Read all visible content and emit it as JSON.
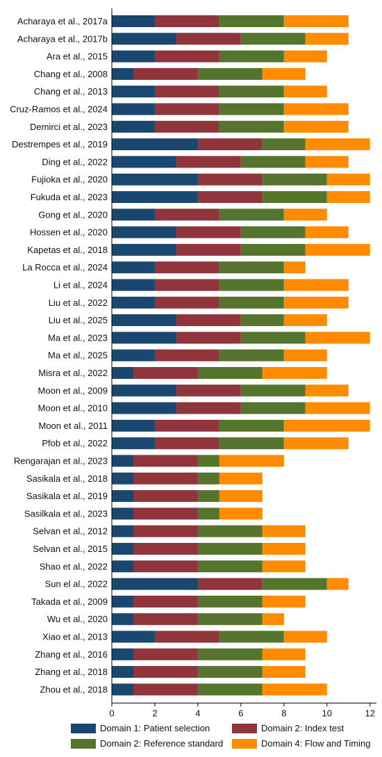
{
  "chart_data": {
    "type": "bar",
    "orientation": "horizontal",
    "stacked": true,
    "categories": [
      "Acharaya et al., 2017a",
      "Acharaya et al., 2017b",
      "Ara et al., 2015",
      "Chang et al., 2008",
      "Chang et al., 2013",
      "Cruz-Ramos et al., 2024",
      "Demirci et al., 2023",
      "Destrempes et al., 2019",
      "Ding et al., 2022",
      "Fujioka et al., 2020",
      "Fukuda et al., 2023",
      "Gong et al., 2020",
      "Hossen et al., 2020",
      "Kapetas et al., 2018",
      "La Rocca et al., 2024",
      "Li et al., 2024",
      "Liu et al., 2022",
      "Liu et al., 2025",
      "Ma et al., 2023",
      "Ma et al., 2025",
      "Misra et al., 2022",
      "Moon et al., 2009",
      "Moon et al., 2010",
      "Moon et al., 2011",
      "Pfob et al., 2022",
      "Rengarajan et al., 2023",
      "Sasikala et al., 2018",
      "Sasikala et al., 2019",
      "Sasilkala et al., 2023",
      "Selvan et al., 2012",
      "Selvan et al., 2015",
      "Shao et al., 2022",
      "Sun el al., 2022",
      "Takada et al., 2009",
      "Wu et al., 2020",
      "Xiao et al., 2013",
      "Zhang et al., 2016",
      "Zhang et al., 2018",
      "Zhou et al., 2018"
    ],
    "series": [
      {
        "name": "Domain 1: Patient selection",
        "color": "#1a476f",
        "values": [
          2,
          3,
          2,
          1,
          2,
          2,
          2,
          4,
          3,
          4,
          4,
          2,
          3,
          3,
          2,
          2,
          2,
          3,
          3,
          2,
          1,
          3,
          3,
          2,
          2,
          1,
          1,
          1,
          1,
          1,
          1,
          1,
          4,
          1,
          1,
          2,
          1,
          1,
          1
        ]
      },
      {
        "name": "Domain 2: Index test",
        "color": "#90353b",
        "values": [
          3,
          3,
          3,
          3,
          3,
          3,
          3,
          3,
          3,
          3,
          3,
          3,
          3,
          3,
          3,
          3,
          3,
          3,
          3,
          3,
          3,
          3,
          3,
          3,
          3,
          3,
          3,
          3,
          3,
          3,
          3,
          3,
          3,
          3,
          3,
          3,
          3,
          3,
          3
        ]
      },
      {
        "name": "Domain 2: Reference standard",
        "color": "#55752f",
        "values": [
          3,
          3,
          3,
          3,
          3,
          3,
          3,
          2,
          3,
          3,
          3,
          3,
          3,
          3,
          3,
          3,
          3,
          2,
          3,
          3,
          3,
          3,
          3,
          3,
          3,
          1,
          1,
          1,
          1,
          3,
          3,
          3,
          3,
          3,
          3,
          3,
          3,
          3,
          3
        ]
      },
      {
        "name": "Domain 4: Flow and Timing",
        "color": "#ff8c00",
        "values": [
          3,
          2,
          2,
          2,
          2,
          3,
          3,
          3,
          2,
          2,
          2,
          2,
          2,
          3,
          1,
          3,
          3,
          2,
          3,
          2,
          3,
          2,
          3,
          4,
          3,
          3,
          2,
          2,
          2,
          2,
          2,
          2,
          1,
          2,
          1,
          2,
          2,
          2,
          3
        ]
      }
    ],
    "xlim": [
      0,
      12.3
    ],
    "xticks": [
      "0",
      "2",
      "4",
      "6",
      "8",
      "10",
      "12"
    ],
    "legend_position": "bottom",
    "grid": false
  }
}
